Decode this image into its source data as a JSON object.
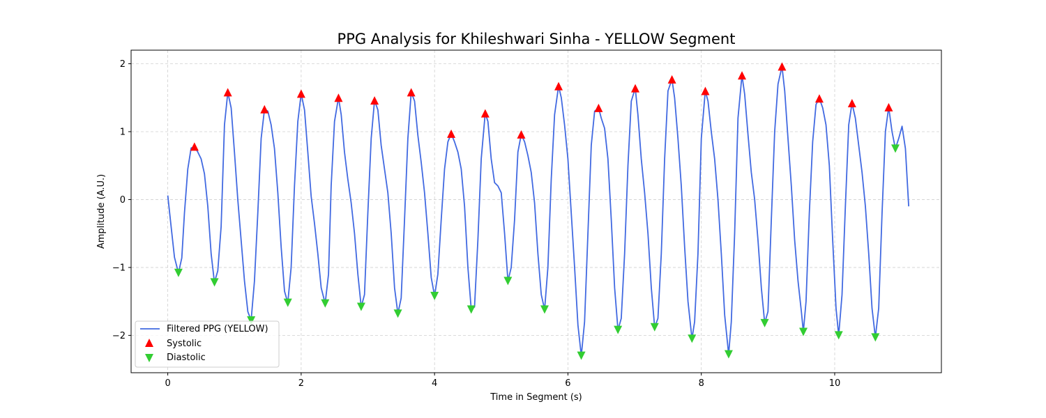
{
  "chart_data": {
    "type": "line",
    "title": "PPG Analysis for Khileshwari Sinha - YELLOW Segment",
    "xlabel": "Time in Segment (s)",
    "ylabel": "Amplitude (A.U.)",
    "xlim": [
      -0.55,
      11.6
    ],
    "ylim": [
      -2.55,
      2.2
    ],
    "xticks": [
      0,
      2,
      4,
      6,
      8,
      10
    ],
    "yticks": [
      -2,
      -1,
      0,
      1,
      2
    ],
    "grid": true,
    "legend_position": "lower-left",
    "colors": {
      "line": "#4169e1",
      "systolic": "#ff0000",
      "diastolic": "#32cd32"
    },
    "series": [
      {
        "name": "Filtered PPG (YELLOW)",
        "kind": "line",
        "points": [
          [
            0.0,
            0.06
          ],
          [
            0.05,
            -0.4
          ],
          [
            0.1,
            -0.85
          ],
          [
            0.16,
            -1.08
          ],
          [
            0.21,
            -0.86
          ],
          [
            0.25,
            -0.2
          ],
          [
            0.3,
            0.45
          ],
          [
            0.35,
            0.76
          ],
          [
            0.4,
            0.78
          ],
          [
            0.45,
            0.7
          ],
          [
            0.5,
            0.6
          ],
          [
            0.55,
            0.38
          ],
          [
            0.6,
            -0.1
          ],
          [
            0.65,
            -0.8
          ],
          [
            0.7,
            -1.22
          ],
          [
            0.75,
            -1.05
          ],
          [
            0.8,
            -0.4
          ],
          [
            0.85,
            1.1
          ],
          [
            0.9,
            1.58
          ],
          [
            0.95,
            1.35
          ],
          [
            1.0,
            0.7
          ],
          [
            1.05,
            0.0
          ],
          [
            1.1,
            -0.6
          ],
          [
            1.15,
            -1.2
          ],
          [
            1.2,
            -1.65
          ],
          [
            1.25,
            -1.78
          ],
          [
            1.3,
            -1.2
          ],
          [
            1.35,
            -0.2
          ],
          [
            1.4,
            0.9
          ],
          [
            1.45,
            1.33
          ],
          [
            1.5,
            1.3
          ],
          [
            1.55,
            1.1
          ],
          [
            1.6,
            0.75
          ],
          [
            1.65,
            0.1
          ],
          [
            1.7,
            -0.7
          ],
          [
            1.75,
            -1.35
          ],
          [
            1.8,
            -1.52
          ],
          [
            1.85,
            -1.0
          ],
          [
            1.9,
            0.2
          ],
          [
            1.95,
            1.15
          ],
          [
            2.0,
            1.56
          ],
          [
            2.05,
            1.32
          ],
          [
            2.1,
            0.7
          ],
          [
            2.15,
            0.05
          ],
          [
            2.2,
            -0.35
          ],
          [
            2.25,
            -0.8
          ],
          [
            2.3,
            -1.3
          ],
          [
            2.36,
            -1.53
          ],
          [
            2.41,
            -1.1
          ],
          [
            2.45,
            0.2
          ],
          [
            2.5,
            1.15
          ],
          [
            2.56,
            1.5
          ],
          [
            2.6,
            1.25
          ],
          [
            2.65,
            0.7
          ],
          [
            2.7,
            0.3
          ],
          [
            2.75,
            -0.05
          ],
          [
            2.8,
            -0.5
          ],
          [
            2.85,
            -1.1
          ],
          [
            2.9,
            -1.58
          ],
          [
            2.95,
            -1.4
          ],
          [
            3.0,
            -0.2
          ],
          [
            3.05,
            0.9
          ],
          [
            3.1,
            1.46
          ],
          [
            3.15,
            1.32
          ],
          [
            3.2,
            0.8
          ],
          [
            3.25,
            0.45
          ],
          [
            3.3,
            0.1
          ],
          [
            3.35,
            -0.5
          ],
          [
            3.4,
            -1.3
          ],
          [
            3.45,
            -1.68
          ],
          [
            3.5,
            -1.45
          ],
          [
            3.55,
            -0.3
          ],
          [
            3.6,
            0.9
          ],
          [
            3.65,
            1.58
          ],
          [
            3.7,
            1.45
          ],
          [
            3.75,
            0.95
          ],
          [
            3.8,
            0.55
          ],
          [
            3.85,
            0.1
          ],
          [
            3.9,
            -0.5
          ],
          [
            3.95,
            -1.15
          ],
          [
            4.0,
            -1.42
          ],
          [
            4.05,
            -1.1
          ],
          [
            4.1,
            -0.3
          ],
          [
            4.15,
            0.45
          ],
          [
            4.2,
            0.85
          ],
          [
            4.25,
            0.97
          ],
          [
            4.3,
            0.85
          ],
          [
            4.35,
            0.7
          ],
          [
            4.4,
            0.45
          ],
          [
            4.45,
            -0.1
          ],
          [
            4.5,
            -1.0
          ],
          [
            4.55,
            -1.62
          ],
          [
            4.6,
            -1.58
          ],
          [
            4.65,
            -0.6
          ],
          [
            4.7,
            0.6
          ],
          [
            4.76,
            1.27
          ],
          [
            4.8,
            1.15
          ],
          [
            4.85,
            0.6
          ],
          [
            4.9,
            0.25
          ],
          [
            4.95,
            0.2
          ],
          [
            5.0,
            0.1
          ],
          [
            5.05,
            -0.5
          ],
          [
            5.1,
            -1.2
          ],
          [
            5.15,
            -1.0
          ],
          [
            5.2,
            -0.3
          ],
          [
            5.25,
            0.7
          ],
          [
            5.3,
            0.96
          ],
          [
            5.35,
            0.85
          ],
          [
            5.4,
            0.65
          ],
          [
            5.45,
            0.4
          ],
          [
            5.5,
            -0.05
          ],
          [
            5.55,
            -0.8
          ],
          [
            5.6,
            -1.4
          ],
          [
            5.65,
            -1.62
          ],
          [
            5.7,
            -1.0
          ],
          [
            5.75,
            0.3
          ],
          [
            5.8,
            1.25
          ],
          [
            5.86,
            1.67
          ],
          [
            5.9,
            1.5
          ],
          [
            5.95,
            1.1
          ],
          [
            6.0,
            0.6
          ],
          [
            6.05,
            -0.2
          ],
          [
            6.1,
            -1.0
          ],
          [
            6.15,
            -1.85
          ],
          [
            6.2,
            -2.3
          ],
          [
            6.25,
            -1.8
          ],
          [
            6.3,
            -0.5
          ],
          [
            6.35,
            0.8
          ],
          [
            6.4,
            1.3
          ],
          [
            6.46,
            1.35
          ],
          [
            6.5,
            1.2
          ],
          [
            6.55,
            1.05
          ],
          [
            6.6,
            0.6
          ],
          [
            6.65,
            -0.3
          ],
          [
            6.7,
            -1.3
          ],
          [
            6.75,
            -1.92
          ],
          [
            6.8,
            -1.75
          ],
          [
            6.85,
            -0.8
          ],
          [
            6.9,
            0.5
          ],
          [
            6.95,
            1.45
          ],
          [
            7.01,
            1.64
          ],
          [
            7.05,
            1.25
          ],
          [
            7.1,
            0.6
          ],
          [
            7.15,
            0.1
          ],
          [
            7.2,
            -0.5
          ],
          [
            7.25,
            -1.3
          ],
          [
            7.3,
            -1.88
          ],
          [
            7.35,
            -1.75
          ],
          [
            7.4,
            -0.8
          ],
          [
            7.45,
            0.6
          ],
          [
            7.5,
            1.6
          ],
          [
            7.56,
            1.77
          ],
          [
            7.6,
            1.5
          ],
          [
            7.65,
            0.9
          ],
          [
            7.7,
            0.2
          ],
          [
            7.75,
            -0.7
          ],
          [
            7.8,
            -1.5
          ],
          [
            7.86,
            -2.05
          ],
          [
            7.9,
            -1.8
          ],
          [
            7.95,
            -0.8
          ],
          [
            8.0,
            0.9
          ],
          [
            8.06,
            1.6
          ],
          [
            8.1,
            1.45
          ],
          [
            8.15,
            1.0
          ],
          [
            8.2,
            0.6
          ],
          [
            8.25,
            0.0
          ],
          [
            8.3,
            -0.8
          ],
          [
            8.35,
            -1.7
          ],
          [
            8.41,
            -2.28
          ],
          [
            8.45,
            -1.8
          ],
          [
            8.5,
            -0.5
          ],
          [
            8.55,
            1.2
          ],
          [
            8.61,
            1.83
          ],
          [
            8.65,
            1.55
          ],
          [
            8.7,
            0.95
          ],
          [
            8.75,
            0.4
          ],
          [
            8.8,
            0.0
          ],
          [
            8.85,
            -0.6
          ],
          [
            8.9,
            -1.3
          ],
          [
            8.95,
            -1.82
          ],
          [
            9.0,
            -1.65
          ],
          [
            9.05,
            -0.3
          ],
          [
            9.1,
            1.0
          ],
          [
            9.15,
            1.7
          ],
          [
            9.21,
            1.96
          ],
          [
            9.25,
            1.6
          ],
          [
            9.3,
            0.9
          ],
          [
            9.35,
            0.2
          ],
          [
            9.4,
            -0.6
          ],
          [
            9.45,
            -1.2
          ],
          [
            9.5,
            -1.65
          ],
          [
            9.53,
            -1.95
          ],
          [
            9.57,
            -1.5
          ],
          [
            9.62,
            -0.2
          ],
          [
            9.67,
            0.85
          ],
          [
            9.72,
            1.4
          ],
          [
            9.77,
            1.49
          ],
          [
            9.82,
            1.35
          ],
          [
            9.87,
            1.1
          ],
          [
            9.92,
            0.5
          ],
          [
            9.97,
            -0.6
          ],
          [
            10.02,
            -1.6
          ],
          [
            10.06,
            -2.0
          ],
          [
            10.11,
            -1.4
          ],
          [
            10.16,
            -0.1
          ],
          [
            10.21,
            1.1
          ],
          [
            10.26,
            1.42
          ],
          [
            10.31,
            1.2
          ],
          [
            10.36,
            0.8
          ],
          [
            10.41,
            0.4
          ],
          [
            10.46,
            -0.1
          ],
          [
            10.51,
            -0.8
          ],
          [
            10.56,
            -1.6
          ],
          [
            10.61,
            -2.03
          ],
          [
            10.66,
            -1.6
          ],
          [
            10.71,
            -0.2
          ],
          [
            10.76,
            1.0
          ],
          [
            10.81,
            1.36
          ],
          [
            10.86,
            1.0
          ],
          [
            10.91,
            0.75
          ],
          [
            10.96,
            0.9
          ],
          [
            11.01,
            1.08
          ],
          [
            11.06,
            0.75
          ],
          [
            11.11,
            -0.1
          ]
        ]
      },
      {
        "name": "Systolic",
        "kind": "markers",
        "marker": "triangle-up",
        "points": [
          [
            0.4,
            0.78
          ],
          [
            0.9,
            1.58
          ],
          [
            1.45,
            1.33
          ],
          [
            2.0,
            1.56
          ],
          [
            2.56,
            1.5
          ],
          [
            3.1,
            1.46
          ],
          [
            3.65,
            1.58
          ],
          [
            4.25,
            0.97
          ],
          [
            4.76,
            1.27
          ],
          [
            5.3,
            0.96
          ],
          [
            5.86,
            1.67
          ],
          [
            6.46,
            1.35
          ],
          [
            7.01,
            1.64
          ],
          [
            7.56,
            1.77
          ],
          [
            8.06,
            1.6
          ],
          [
            8.61,
            1.83
          ],
          [
            9.21,
            1.96
          ],
          [
            9.77,
            1.49
          ],
          [
            10.26,
            1.42
          ],
          [
            10.81,
            1.36
          ]
        ]
      },
      {
        "name": "Diastolic",
        "kind": "markers",
        "marker": "triangle-down",
        "points": [
          [
            0.16,
            -1.08
          ],
          [
            0.7,
            -1.22
          ],
          [
            1.25,
            -1.78
          ],
          [
            1.8,
            -1.52
          ],
          [
            2.36,
            -1.53
          ],
          [
            2.9,
            -1.58
          ],
          [
            3.45,
            -1.68
          ],
          [
            4.0,
            -1.42
          ],
          [
            4.55,
            -1.62
          ],
          [
            5.1,
            -1.2
          ],
          [
            5.65,
            -1.62
          ],
          [
            6.2,
            -2.3
          ],
          [
            6.75,
            -1.92
          ],
          [
            7.3,
            -1.88
          ],
          [
            7.86,
            -2.05
          ],
          [
            8.41,
            -2.28
          ],
          [
            8.95,
            -1.82
          ],
          [
            9.53,
            -1.95
          ],
          [
            10.06,
            -2.0
          ],
          [
            10.61,
            -2.03
          ],
          [
            10.91,
            0.75
          ]
        ]
      }
    ]
  }
}
